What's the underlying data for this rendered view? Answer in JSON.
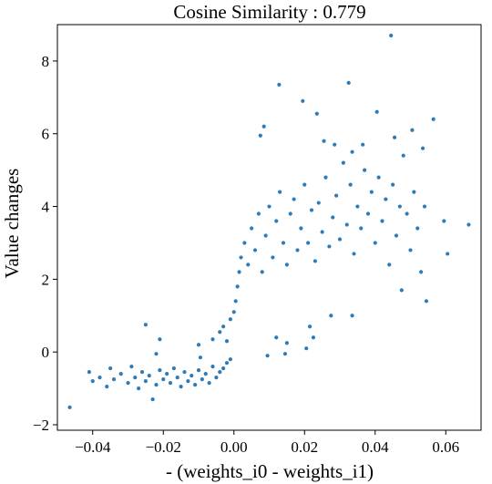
{
  "chart_data": {
    "type": "scatter",
    "title": "Cosine Similarity : 0.779",
    "xlabel": "- (weights_i0 - weights_i1)",
    "ylabel": "Value changes",
    "xlim": [
      -0.05,
      0.07
    ],
    "ylim": [
      -2.15,
      9.0
    ],
    "xticks": [
      -0.04,
      -0.02,
      0.0,
      0.02,
      0.04,
      0.06
    ],
    "xtick_labels": [
      "−0.04",
      "−0.02",
      "0.00",
      "0.02",
      "0.04",
      "0.06"
    ],
    "yticks": [
      -2,
      0,
      2,
      4,
      6,
      8
    ],
    "ytick_labels": [
      "−2",
      "0",
      "2",
      "4",
      "6",
      "8"
    ],
    "grid": false,
    "legend": "none",
    "point_color": "#2f7bb6",
    "points": [
      [
        -0.0465,
        -1.52
      ],
      [
        -0.041,
        -0.55
      ],
      [
        -0.04,
        -0.8
      ],
      [
        -0.038,
        -0.7
      ],
      [
        -0.036,
        -0.95
      ],
      [
        -0.035,
        -0.45
      ],
      [
        -0.034,
        -0.75
      ],
      [
        -0.032,
        -0.6
      ],
      [
        -0.03,
        -0.85
      ],
      [
        -0.029,
        -0.4
      ],
      [
        -0.028,
        -0.7
      ],
      [
        -0.027,
        -1.0
      ],
      [
        -0.026,
        -0.55
      ],
      [
        -0.025,
        -0.8
      ],
      [
        -0.024,
        -0.65
      ],
      [
        -0.023,
        -1.3
      ],
      [
        -0.022,
        -0.9
      ],
      [
        -0.021,
        -0.5
      ],
      [
        -0.02,
        -0.75
      ],
      [
        -0.019,
        -0.6
      ],
      [
        -0.018,
        -0.85
      ],
      [
        -0.017,
        -0.45
      ],
      [
        -0.016,
        -0.7
      ],
      [
        -0.015,
        -0.95
      ],
      [
        -0.014,
        -0.55
      ],
      [
        -0.013,
        -0.8
      ],
      [
        -0.012,
        -0.65
      ],
      [
        -0.011,
        -0.9
      ],
      [
        -0.01,
        -0.5
      ],
      [
        -0.009,
        -0.75
      ],
      [
        -0.008,
        -0.6
      ],
      [
        -0.007,
        -0.85
      ],
      [
        -0.006,
        -0.4
      ],
      [
        -0.005,
        -0.7
      ],
      [
        -0.004,
        -0.55
      ],
      [
        -0.003,
        -0.45
      ],
      [
        -0.002,
        -0.3
      ],
      [
        -0.001,
        -0.2
      ],
      [
        -0.025,
        0.75
      ],
      [
        -0.021,
        0.35
      ],
      [
        -0.022,
        -0.05
      ],
      [
        -0.01,
        0.2
      ],
      [
        -0.006,
        0.35
      ],
      [
        -0.004,
        0.55
      ],
      [
        -0.003,
        0.7
      ],
      [
        -0.002,
        0.3
      ],
      [
        -0.001,
        0.9
      ],
      [
        0.0,
        1.1
      ],
      [
        0.0005,
        1.4
      ],
      [
        0.001,
        1.8
      ],
      [
        0.0015,
        2.2
      ],
      [
        0.002,
        2.6
      ],
      [
        0.003,
        3.0
      ],
      [
        0.004,
        2.4
      ],
      [
        0.005,
        3.4
      ],
      [
        0.006,
        2.8
      ],
      [
        0.007,
        3.8
      ],
      [
        0.008,
        2.2
      ],
      [
        0.009,
        3.2
      ],
      [
        0.01,
        4.0
      ],
      [
        0.011,
        2.6
      ],
      [
        0.012,
        3.6
      ],
      [
        0.013,
        4.4
      ],
      [
        0.014,
        3.0
      ],
      [
        0.015,
        2.4
      ],
      [
        0.016,
        3.8
      ],
      [
        0.017,
        4.2
      ],
      [
        0.018,
        2.8
      ],
      [
        0.019,
        3.4
      ],
      [
        0.02,
        4.6
      ],
      [
        0.021,
        3.0
      ],
      [
        0.022,
        3.9
      ],
      [
        0.023,
        2.5
      ],
      [
        0.024,
        4.1
      ],
      [
        0.025,
        3.3
      ],
      [
        0.026,
        4.8
      ],
      [
        0.027,
        2.9
      ],
      [
        0.028,
        3.7
      ],
      [
        0.029,
        4.3
      ],
      [
        0.03,
        3.1
      ],
      [
        0.031,
        5.2
      ],
      [
        0.032,
        3.5
      ],
      [
        0.033,
        4.6
      ],
      [
        0.034,
        2.7
      ],
      [
        0.035,
        4.0
      ],
      [
        0.036,
        3.4
      ],
      [
        0.037,
        5.0
      ],
      [
        0.038,
        3.8
      ],
      [
        0.039,
        4.4
      ],
      [
        0.04,
        3.0
      ],
      [
        0.041,
        4.8
      ],
      [
        0.042,
        3.6
      ],
      [
        0.043,
        4.2
      ],
      [
        0.044,
        2.4
      ],
      [
        0.045,
        4.6
      ],
      [
        0.046,
        3.2
      ],
      [
        0.047,
        4.0
      ],
      [
        0.048,
        5.4
      ],
      [
        0.049,
        3.8
      ],
      [
        0.05,
        2.8
      ],
      [
        0.051,
        4.4
      ],
      [
        0.052,
        3.4
      ],
      [
        0.053,
        2.2
      ],
      [
        0.054,
        4.0
      ],
      [
        0.0215,
        0.7
      ],
      [
        0.012,
        0.4
      ],
      [
        0.015,
        0.25
      ],
      [
        0.0445,
        8.7
      ],
      [
        0.0128,
        7.35
      ],
      [
        0.0325,
        7.4
      ],
      [
        0.0235,
        6.55
      ],
      [
        0.0195,
        6.9
      ],
      [
        0.0405,
        6.6
      ],
      [
        0.0565,
        6.4
      ],
      [
        0.0505,
        6.1
      ],
      [
        0.0085,
        6.2
      ],
      [
        0.0075,
        5.95
      ],
      [
        0.0365,
        5.7
      ],
      [
        0.0455,
        5.9
      ],
      [
        0.0535,
        5.6
      ],
      [
        0.0335,
        5.5
      ],
      [
        0.0285,
        5.7
      ],
      [
        0.0255,
        5.8
      ],
      [
        0.0665,
        3.5
      ],
      [
        0.0595,
        3.6
      ],
      [
        0.0605,
        2.7
      ],
      [
        0.0545,
        1.4
      ],
      [
        0.0475,
        1.7
      ],
      [
        0.0335,
        1.0
      ],
      [
        0.0275,
        1.0
      ],
      [
        0.0225,
        0.4
      ],
      [
        0.0205,
        0.1
      ],
      [
        0.0145,
        -0.05
      ],
      [
        0.0095,
        -0.1
      ],
      [
        -0.0095,
        -0.15
      ]
    ]
  }
}
